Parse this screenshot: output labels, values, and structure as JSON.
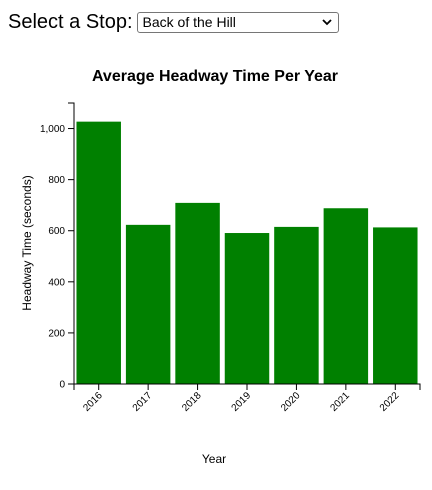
{
  "selector": {
    "label": "Select a Stop:",
    "selected": "Back of the Hill"
  },
  "chart_data": {
    "type": "bar",
    "title": "Average Headway Time Per Year",
    "xlabel": "Year",
    "ylabel": "Headway Time (seconds)",
    "categories": [
      "2016",
      "2017",
      "2018",
      "2019",
      "2020",
      "2021",
      "2022"
    ],
    "values": [
      1027,
      623,
      709,
      591,
      615,
      688,
      613
    ],
    "ylim": [
      0,
      1100
    ],
    "yticks": [
      0,
      200,
      400,
      600,
      800,
      1000
    ],
    "ytick_labels": [
      "0",
      "200",
      "400",
      "600",
      "800",
      "1,000"
    ],
    "bar_color": "#008000",
    "grid": false
  }
}
